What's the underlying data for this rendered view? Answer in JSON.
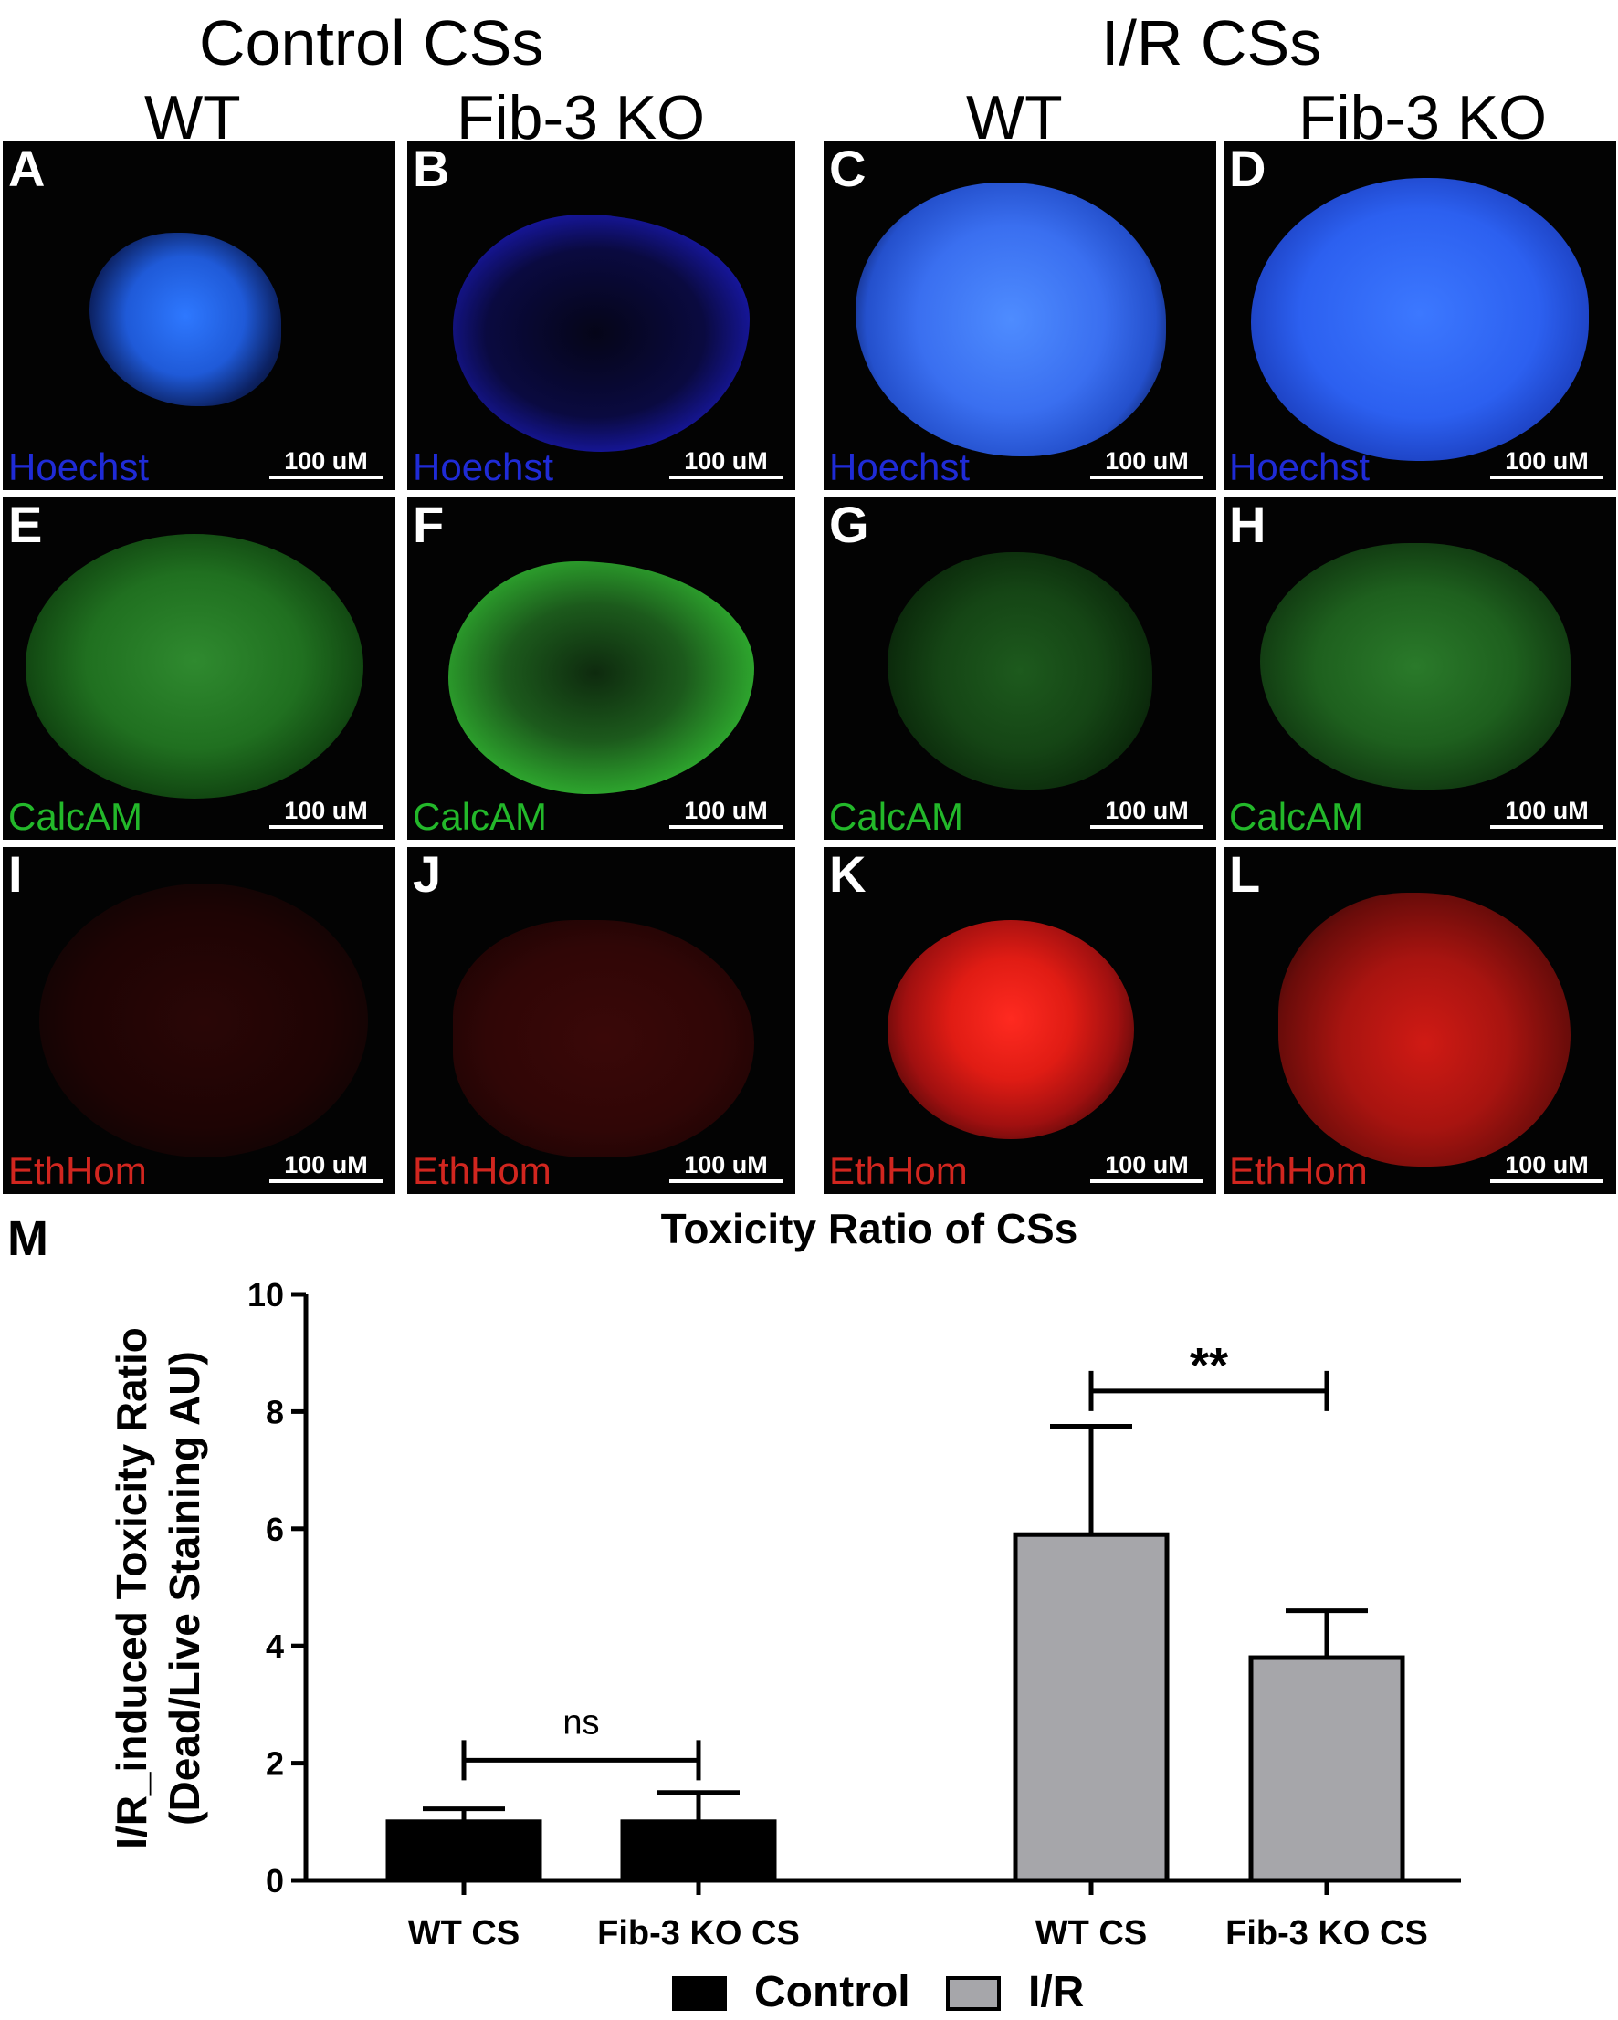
{
  "headers": {
    "group_control": "Control CSs",
    "group_ir": "I/R CSs",
    "col_wt_1": "WT",
    "col_ko_1": "Fib-3 KO",
    "col_wt_2": "WT",
    "col_ko_2": "Fib-3 KO"
  },
  "panels": [
    {
      "letter": "A",
      "stain": "Hoechst",
      "scale": "100 uM",
      "stain_color": "#1f2bd6"
    },
    {
      "letter": "B",
      "stain": "Hoechst",
      "scale": "100 uM",
      "stain_color": "#1f2bd6"
    },
    {
      "letter": "C",
      "stain": "Hoechst",
      "scale": "100 uM",
      "stain_color": "#1f2bd6"
    },
    {
      "letter": "D",
      "stain": "Hoechst",
      "scale": "100 uM",
      "stain_color": "#1f2bd6"
    },
    {
      "letter": "E",
      "stain": "CalcAM",
      "scale": "100 uM",
      "stain_color": "#23b82a"
    },
    {
      "letter": "F",
      "stain": "CalcAM",
      "scale": "100 uM",
      "stain_color": "#23b82a"
    },
    {
      "letter": "G",
      "stain": "CalcAM",
      "scale": "100 uM",
      "stain_color": "#23b82a"
    },
    {
      "letter": "H",
      "stain": "CalcAM",
      "scale": "100 uM",
      "stain_color": "#23b82a"
    },
    {
      "letter": "I",
      "stain": "EthHom",
      "scale": "100 uM",
      "stain_color": "#d1261f"
    },
    {
      "letter": "J",
      "stain": "EthHom",
      "scale": "100 uM",
      "stain_color": "#d1261f"
    },
    {
      "letter": "K",
      "stain": "EthHom",
      "scale": "100 uM",
      "stain_color": "#d1261f"
    },
    {
      "letter": "L",
      "stain": "EthHom",
      "scale": "100 uM",
      "stain_color": "#d1261f"
    }
  ],
  "panel_m_letter": "M",
  "chart_data": {
    "type": "bar",
    "title": "Toxicity Ratio of CSs",
    "ylabel": "I/R_induced Toxicity Ratio (Dead/Live Staining AU)",
    "ylabel_lines": [
      "I/R_induced Toxicity Ratio",
      "(Dead/Live Staining AU)"
    ],
    "xlabel": "",
    "ylim": [
      0,
      10
    ],
    "yticks": [
      0,
      2,
      4,
      6,
      8,
      10
    ],
    "categories": [
      "WT CS",
      "Fib-3 KO CS",
      "WT CS",
      "Fib-3 KO CS"
    ],
    "series": [
      {
        "name": "Control",
        "color": "#000000",
        "values": [
          1.0,
          1.0,
          null,
          null
        ],
        "error": [
          0.22,
          0.5,
          null,
          null
        ]
      },
      {
        "name": "I/R",
        "color": "#a6a6aa",
        "values": [
          null,
          null,
          5.9,
          3.8
        ],
        "error": [
          null,
          null,
          1.85,
          0.8
        ]
      }
    ],
    "annotations": [
      {
        "text": "ns",
        "from": 0,
        "to": 1
      },
      {
        "text": "**",
        "from": 2,
        "to": 3
      }
    ],
    "legend": {
      "position": "bottom"
    }
  }
}
